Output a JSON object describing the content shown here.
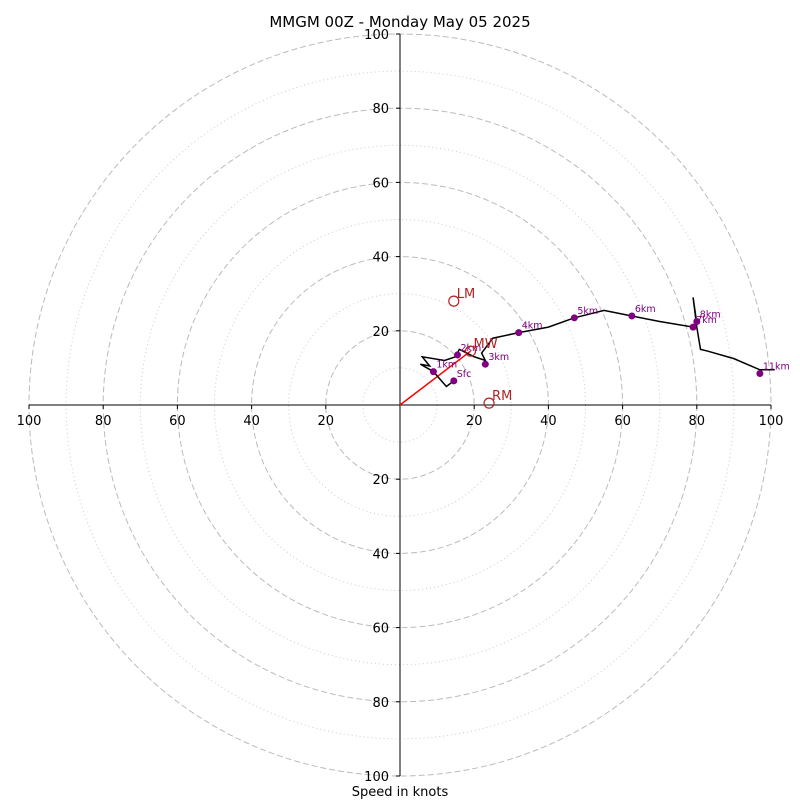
{
  "chart_data": {
    "type": "hodograph",
    "title": "MMGM 00Z - Monday May 05 2025",
    "xlabel": "Speed in knots",
    "units": "knots",
    "axis_range": [
      -100,
      100
    ],
    "tick_labels": [
      "100",
      "80",
      "60",
      "40",
      "20",
      "20",
      "40",
      "60",
      "80",
      "100"
    ],
    "y_tick_labels": [
      "100",
      "80",
      "60",
      "40",
      "20",
      "20",
      "40",
      "60",
      "80",
      "100"
    ],
    "rings_major": [
      20,
      40,
      60,
      80,
      100
    ],
    "rings_minor": [
      10,
      30,
      50,
      70,
      90
    ],
    "colors": {
      "trace": "#000000",
      "markers": "#800080",
      "motion": "#b22222",
      "mean_wind_vector": "#ff0000",
      "grid": "#bbbbbb"
    },
    "trace": [
      [
        14.5,
        6.5
      ],
      [
        12.5,
        5
      ],
      [
        9,
        9
      ],
      [
        5.5,
        11
      ],
      [
        8,
        10.5
      ],
      [
        6,
        13
      ],
      [
        12,
        12
      ],
      [
        15,
        13
      ],
      [
        16,
        15
      ],
      [
        18,
        14
      ],
      [
        20,
        13
      ],
      [
        23,
        12
      ],
      [
        22,
        14
      ],
      [
        25,
        18
      ],
      [
        32,
        19.5
      ],
      [
        40,
        21
      ],
      [
        47,
        23.5
      ],
      [
        55,
        25.5
      ],
      [
        62.5,
        24
      ],
      [
        70,
        22.5
      ],
      [
        79,
        21
      ],
      [
        80,
        22
      ],
      [
        79,
        29
      ],
      [
        80,
        21
      ],
      [
        81,
        15
      ],
      [
        83,
        14.5
      ],
      [
        90,
        12.5
      ],
      [
        97,
        9.5
      ],
      [
        101,
        9.5
      ]
    ],
    "levels": [
      {
        "label": "Sfc",
        "u": 14.5,
        "v": 6.5
      },
      {
        "label": "1km",
        "u": 9,
        "v": 9
      },
      {
        "label": "2km",
        "u": 15.5,
        "v": 13.5
      },
      {
        "label": "3km",
        "u": 23,
        "v": 11
      },
      {
        "label": "4km",
        "u": 32,
        "v": 19.5
      },
      {
        "label": "5km",
        "u": 47,
        "v": 23.5
      },
      {
        "label": "6km",
        "u": 62.5,
        "v": 24
      },
      {
        "label": "7km",
        "u": 79,
        "v": 21
      },
      {
        "label": "8km",
        "u": 80,
        "v": 22.5
      },
      {
        "label": "11km",
        "u": 97,
        "v": 8.5
      }
    ],
    "storm_motion": [
      {
        "label": "LM",
        "u": 14.5,
        "v": 28
      },
      {
        "label": "MW",
        "u": 19,
        "v": 14.5
      },
      {
        "label": "RM",
        "u": 24,
        "v": 0.5
      }
    ]
  }
}
